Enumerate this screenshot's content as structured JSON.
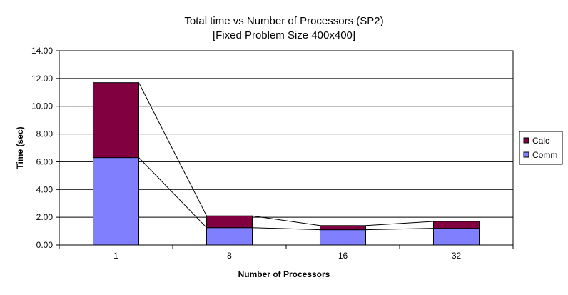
{
  "chart_data": {
    "type": "bar",
    "stacked": true,
    "title": "Total time vs Number of Processors (SP2)",
    "subtitle": "[Fixed Problem Size 400x400]",
    "xlabel": "Number of Processors",
    "ylabel": "Time (sec)",
    "categories": [
      "1",
      "8",
      "16",
      "32"
    ],
    "ylim": [
      0,
      14
    ],
    "yticks": [
      "0.00",
      "2.00",
      "4.00",
      "6.00",
      "8.00",
      "10.00",
      "12.00",
      "14.00"
    ],
    "ytick_values": [
      0,
      2,
      4,
      6,
      8,
      10,
      12,
      14
    ],
    "grid": true,
    "legend_position": "right",
    "series_lines": true,
    "series": [
      {
        "name": "Comm",
        "values": [
          6.3,
          1.25,
          1.1,
          1.2
        ],
        "color": "#8080ff"
      },
      {
        "name": "Calc",
        "values": [
          5.4,
          0.85,
          0.3,
          0.5
        ],
        "color": "#800040"
      }
    ]
  }
}
